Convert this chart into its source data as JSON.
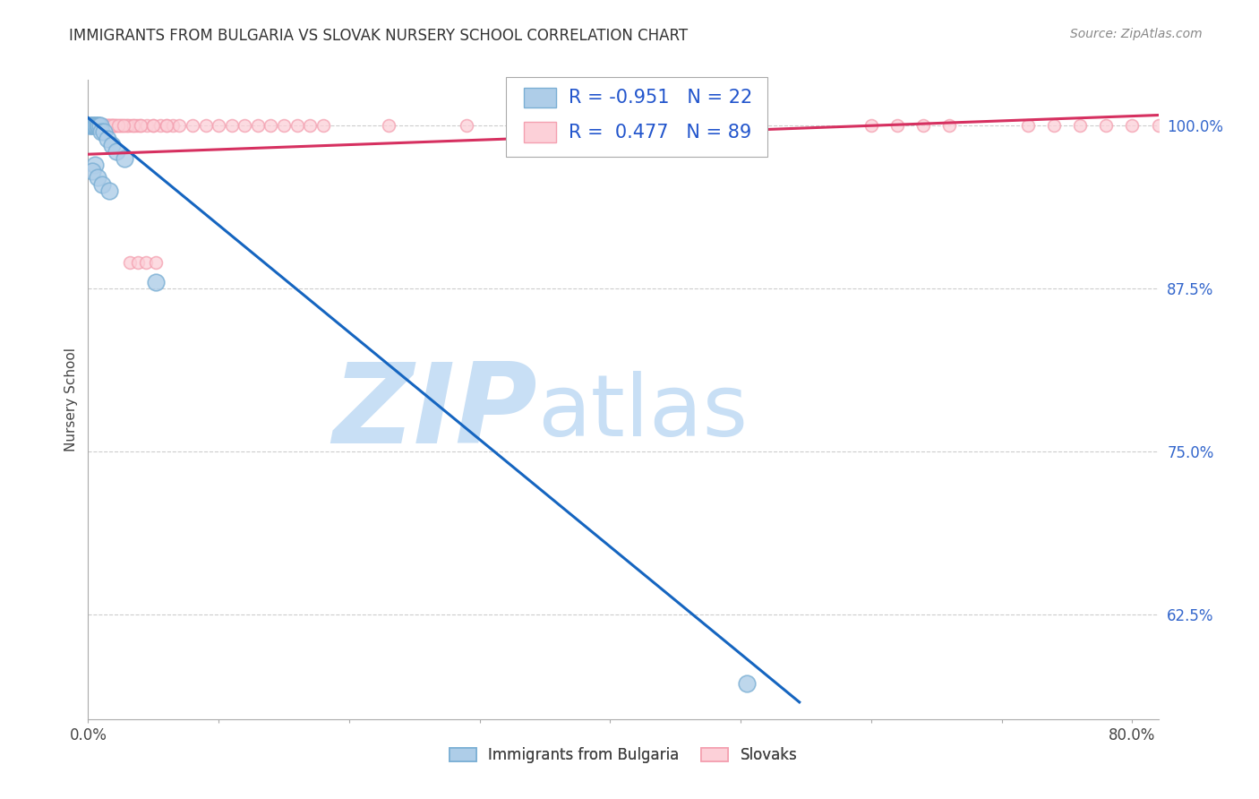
{
  "title": "IMMIGRANTS FROM BULGARIA VS SLOVAK NURSERY SCHOOL CORRELATION CHART",
  "source": "Source: ZipAtlas.com",
  "ylabel": "Nursery School",
  "xlim": [
    0.0,
    0.82
  ],
  "ylim": [
    0.545,
    1.035
  ],
  "yticks": [
    0.625,
    0.75,
    0.875,
    1.0
  ],
  "ytick_labels": [
    "62.5%",
    "75.0%",
    "87.5%",
    "100.0%"
  ],
  "xticks": [
    0.0,
    0.1,
    0.2,
    0.3,
    0.4,
    0.5,
    0.6,
    0.7,
    0.8
  ],
  "watermark_zip": "ZIP",
  "watermark_atlas": "atlas",
  "legend_entries": [
    "Immigrants from Bulgaria",
    "Slovaks"
  ],
  "blue_color": "#7bafd4",
  "blue_fill": "#aecde8",
  "pink_color": "#f4a0b0",
  "pink_fill": "#fcd0d8",
  "blue_line_color": "#1565c0",
  "pink_line_color": "#d63060",
  "r_blue": "-0.951",
  "n_blue": "22",
  "r_pink": "0.477",
  "n_pink": "89",
  "blue_scatter_x": [
    0.001,
    0.002,
    0.003,
    0.004,
    0.005,
    0.006,
    0.007,
    0.008,
    0.009,
    0.01,
    0.012,
    0.015,
    0.018,
    0.022,
    0.028,
    0.005,
    0.003,
    0.007,
    0.011,
    0.016,
    0.052,
    0.505
  ],
  "blue_scatter_y": [
    1.0,
    1.0,
    1.0,
    1.0,
    1.0,
    1.0,
    1.0,
    1.0,
    1.0,
    0.995,
    0.995,
    0.99,
    0.985,
    0.98,
    0.975,
    0.97,
    0.965,
    0.96,
    0.955,
    0.95,
    0.88,
    0.572
  ],
  "pink_scatter_x": [
    0.001,
    0.002,
    0.003,
    0.004,
    0.005,
    0.006,
    0.007,
    0.008,
    0.009,
    0.01,
    0.011,
    0.012,
    0.013,
    0.014,
    0.015,
    0.016,
    0.017,
    0.018,
    0.019,
    0.02,
    0.022,
    0.024,
    0.026,
    0.028,
    0.03,
    0.032,
    0.034,
    0.036,
    0.038,
    0.04,
    0.045,
    0.05,
    0.055,
    0.06,
    0.065,
    0.07,
    0.08,
    0.09,
    0.1,
    0.11,
    0.12,
    0.13,
    0.14,
    0.15,
    0.16,
    0.003,
    0.006,
    0.009,
    0.012,
    0.015,
    0.018,
    0.021,
    0.025,
    0.03,
    0.035,
    0.04,
    0.05,
    0.06,
    0.17,
    0.18,
    0.23,
    0.29,
    0.35,
    0.42,
    0.44,
    0.46,
    0.48,
    0.5,
    0.6,
    0.62,
    0.64,
    0.66,
    0.72,
    0.74,
    0.76,
    0.78,
    0.8,
    0.82,
    0.84,
    0.86,
    0.013,
    0.016,
    0.019,
    0.023,
    0.027,
    0.032,
    0.038,
    0.044,
    0.052
  ],
  "pink_scatter_y": [
    1.0,
    1.0,
    1.0,
    1.0,
    1.0,
    1.0,
    1.0,
    1.0,
    1.0,
    1.0,
    1.0,
    1.0,
    1.0,
    1.0,
    1.0,
    1.0,
    1.0,
    1.0,
    1.0,
    1.0,
    1.0,
    1.0,
    1.0,
    1.0,
    1.0,
    1.0,
    1.0,
    1.0,
    1.0,
    1.0,
    1.0,
    1.0,
    1.0,
    1.0,
    1.0,
    1.0,
    1.0,
    1.0,
    1.0,
    1.0,
    1.0,
    1.0,
    1.0,
    1.0,
    1.0,
    1.0,
    1.0,
    1.0,
    1.0,
    1.0,
    1.0,
    1.0,
    1.0,
    1.0,
    1.0,
    1.0,
    1.0,
    1.0,
    1.0,
    1.0,
    1.0,
    1.0,
    1.0,
    1.0,
    1.0,
    1.0,
    1.0,
    1.0,
    1.0,
    1.0,
    1.0,
    1.0,
    1.0,
    1.0,
    1.0,
    1.0,
    1.0,
    1.0,
    1.0,
    1.0,
    1.0,
    1.0,
    1.0,
    1.0,
    1.0,
    0.895,
    0.895,
    0.895,
    0.895
  ],
  "blue_line_x": [
    -0.005,
    0.545
  ],
  "blue_line_y": [
    1.01,
    0.558
  ],
  "pink_line_x": [
    0.0,
    0.82
  ],
  "pink_line_y": [
    0.978,
    1.008
  ],
  "grid_color": "#cccccc",
  "bg_color": "#ffffff",
  "title_color": "#333333",
  "right_tick_color": "#3366cc",
  "watermark_color_zip": "#c8dff5",
  "watermark_color_atlas": "#c8dff5",
  "scatter_size_blue": 180,
  "scatter_size_pink": 100
}
